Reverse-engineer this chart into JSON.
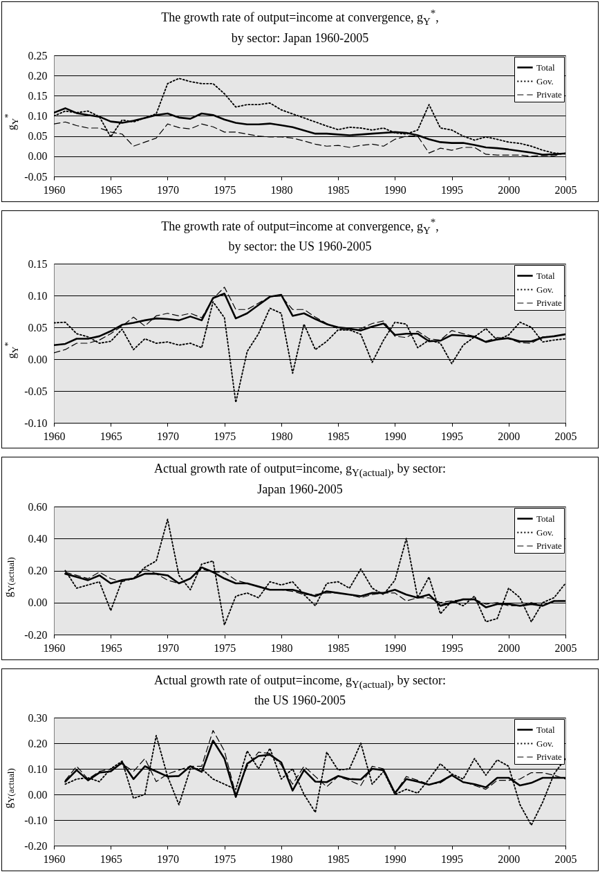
{
  "chart_data": [
    {
      "type": "line",
      "title": "The growth rate of output=income at convergence, g$_{Y}$$^{*}$,",
      "subtitle": "by sector: Japan 1960-2005",
      "ylabel": "g$_{Y}$$^{*}$",
      "x": [
        1960,
        1961,
        1962,
        1963,
        1964,
        1965,
        1966,
        1967,
        1968,
        1969,
        1970,
        1971,
        1972,
        1973,
        1974,
        1975,
        1976,
        1977,
        1978,
        1979,
        1980,
        1981,
        1982,
        1983,
        1984,
        1985,
        1986,
        1987,
        1988,
        1989,
        1990,
        1991,
        1992,
        1993,
        1994,
        1995,
        1996,
        1997,
        1998,
        1999,
        2000,
        2001,
        2002,
        2003,
        2004,
        2005
      ],
      "xlim": [
        1960,
        2005
      ],
      "xticks": [
        1960,
        1965,
        1970,
        1975,
        1980,
        1985,
        1990,
        1995,
        2000,
        2005
      ],
      "ylim": [
        -0.05,
        0.25
      ],
      "yticks": [
        {
          "value": -0.05,
          "label": "-0.05"
        },
        {
          "value": 0,
          "label": "0.00"
        },
        {
          "value": 0.05,
          "label": "0.05"
        },
        {
          "value": 0.1,
          "label": "0.10"
        },
        {
          "value": 0.15,
          "label": "0.15"
        },
        {
          "value": 0.2,
          "label": "0.20"
        },
        {
          "value": 0.25,
          "label": "0.25"
        }
      ],
      "grid": "y",
      "legend": "top right",
      "series": [
        {
          "name": "Total",
          "color": "#000000",
          "line_style": "solid",
          "values": [
            0.108,
            0.119,
            0.107,
            0.102,
            0.098,
            0.086,
            0.083,
            0.088,
            0.095,
            0.102,
            0.106,
            0.096,
            0.093,
            0.106,
            0.102,
            0.091,
            0.083,
            0.079,
            0.079,
            0.081,
            0.077,
            0.072,
            0.064,
            0.056,
            0.056,
            0.054,
            0.052,
            0.054,
            0.056,
            0.058,
            0.06,
            0.058,
            0.052,
            0.042,
            0.035,
            0.033,
            0.033,
            0.028,
            0.022,
            0.02,
            0.017,
            0.013,
            0.009,
            0.004,
            0.005,
            0.007
          ]
        },
        {
          "name": "Gov.",
          "color": "#000000",
          "line_style": "dotted",
          "values": [
            0.1,
            0.112,
            0.108,
            0.112,
            0.098,
            0.048,
            0.09,
            0.085,
            0.095,
            0.105,
            0.18,
            0.193,
            0.185,
            0.18,
            0.18,
            0.155,
            0.122,
            0.128,
            0.128,
            0.132,
            0.115,
            0.105,
            0.095,
            0.085,
            0.075,
            0.066,
            0.072,
            0.07,
            0.065,
            0.07,
            0.058,
            0.055,
            0.065,
            0.128,
            0.07,
            0.065,
            0.05,
            0.04,
            0.048,
            0.042,
            0.035,
            0.032,
            0.025,
            0.015,
            0.008,
            0.006
          ]
        },
        {
          "name": "Private",
          "color": "#000000",
          "line_style": "dashed",
          "values": [
            0.08,
            0.085,
            0.076,
            0.07,
            0.07,
            0.06,
            0.055,
            0.025,
            0.035,
            0.045,
            0.08,
            0.071,
            0.068,
            0.08,
            0.073,
            0.06,
            0.06,
            0.055,
            0.05,
            0.048,
            0.048,
            0.045,
            0.038,
            0.03,
            0.025,
            0.027,
            0.022,
            0.027,
            0.03,
            0.025,
            0.042,
            0.05,
            0.05,
            0.008,
            0.02,
            0.015,
            0.022,
            0.022,
            0.005,
            0.003,
            0.003,
            0.003,
            0.0,
            0.002,
            0.001,
            0.008
          ]
        }
      ]
    },
    {
      "type": "line",
      "title": "The growth rate of output=income at convergence, g$_{Y}$$^{*}$,",
      "subtitle": "by sector: the US 1960-2005",
      "ylabel": "g$_{Y}$$^{*}$",
      "x": [
        1960,
        1961,
        1962,
        1963,
        1964,
        1965,
        1966,
        1967,
        1968,
        1969,
        1970,
        1971,
        1972,
        1973,
        1974,
        1975,
        1976,
        1977,
        1978,
        1979,
        1980,
        1981,
        1982,
        1983,
        1984,
        1985,
        1986,
        1987,
        1988,
        1989,
        1990,
        1991,
        1992,
        1993,
        1994,
        1995,
        1996,
        1997,
        1998,
        1999,
        2000,
        2001,
        2002,
        2003,
        2004,
        2005
      ],
      "xlim": [
        1960,
        2005
      ],
      "xticks": [
        1960,
        1965,
        1970,
        1975,
        1980,
        1985,
        1990,
        1995,
        2000,
        2005
      ],
      "ylim": [
        -0.1,
        0.15
      ],
      "yticks": [
        {
          "value": -0.1,
          "label": "-0.10"
        },
        {
          "value": -0.05,
          "label": "-0.05"
        },
        {
          "value": 0,
          "label": "0.00"
        },
        {
          "value": 0.05,
          "label": "0.05"
        },
        {
          "value": 0.1,
          "label": "0.10"
        },
        {
          "value": 0.15,
          "label": "0.15"
        }
      ],
      "grid": "y",
      "legend": "top right",
      "series": [
        {
          "name": "Total",
          "color": "#000000",
          "line_style": "solid",
          "values": [
            0.022,
            0.024,
            0.032,
            0.032,
            0.036,
            0.044,
            0.054,
            0.057,
            0.061,
            0.064,
            0.063,
            0.061,
            0.067,
            0.061,
            0.096,
            0.103,
            0.064,
            0.072,
            0.085,
            0.098,
            0.101,
            0.068,
            0.072,
            0.063,
            0.055,
            0.05,
            0.048,
            0.045,
            0.051,
            0.056,
            0.038,
            0.04,
            0.04,
            0.028,
            0.029,
            0.038,
            0.037,
            0.035,
            0.027,
            0.031,
            0.033,
            0.028,
            0.028,
            0.034,
            0.036,
            0.039
          ]
        },
        {
          "name": "Gov.",
          "color": "#000000",
          "line_style": "dotted",
          "values": [
            0.057,
            0.058,
            0.04,
            0.035,
            0.025,
            0.028,
            0.047,
            0.015,
            0.032,
            0.025,
            0.027,
            0.022,
            0.025,
            0.018,
            0.09,
            0.065,
            -0.068,
            0.012,
            0.04,
            0.08,
            0.072,
            -0.022,
            0.055,
            0.015,
            0.028,
            0.046,
            0.046,
            0.039,
            -0.005,
            0.03,
            0.058,
            0.055,
            0.018,
            0.03,
            0.025,
            -0.007,
            0.022,
            0.035,
            0.048,
            0.03,
            0.038,
            0.058,
            0.05,
            0.027,
            0.03,
            0.032
          ]
        },
        {
          "name": "Private",
          "color": "#000000",
          "line_style": "dashed",
          "values": [
            0.01,
            0.015,
            0.025,
            0.025,
            0.03,
            0.04,
            0.052,
            0.066,
            0.052,
            0.068,
            0.072,
            0.068,
            0.072,
            0.065,
            0.095,
            0.113,
            0.078,
            0.078,
            0.088,
            0.098,
            0.099,
            0.078,
            0.078,
            0.066,
            0.056,
            0.048,
            0.045,
            0.048,
            0.056,
            0.06,
            0.036,
            0.034,
            0.044,
            0.032,
            0.03,
            0.045,
            0.04,
            0.036,
            0.028,
            0.034,
            0.032,
            0.026,
            0.025,
            0.035,
            0.036,
            0.039
          ]
        }
      ]
    },
    {
      "type": "line",
      "title": "Actual growth rate of output=income, g$_{Y(actual)}$, by sector:",
      "subtitle": "Japan 1960-2005",
      "ylabel": "g$_{Y(actual)}$",
      "x": [
        1961,
        1962,
        1963,
        1964,
        1965,
        1966,
        1967,
        1968,
        1969,
        1970,
        1971,
        1972,
        1973,
        1974,
        1975,
        1976,
        1977,
        1978,
        1979,
        1980,
        1981,
        1982,
        1983,
        1984,
        1985,
        1986,
        1987,
        1988,
        1989,
        1990,
        1991,
        1992,
        1993,
        1994,
        1995,
        1996,
        1997,
        1998,
        1999,
        2000,
        2001,
        2002,
        2003,
        2004,
        2005
      ],
      "xlim": [
        1960,
        2005
      ],
      "xticks": [
        1960,
        1965,
        1970,
        1975,
        1980,
        1985,
        1990,
        1995,
        2000,
        2005
      ],
      "ylim": [
        -0.2,
        0.6
      ],
      "yticks": [
        {
          "value": -0.2,
          "label": "-0.20"
        },
        {
          "value": 0,
          "label": "0.00"
        },
        {
          "value": 0.2,
          "label": "0.20"
        },
        {
          "value": 0.4,
          "label": "0.40"
        },
        {
          "value": 0.6,
          "label": "0.60"
        }
      ],
      "grid": "y",
      "legend": "top right",
      "series": [
        {
          "name": "Total",
          "color": "#000000",
          "line_style": "solid",
          "values": [
            0.18,
            0.16,
            0.14,
            0.17,
            0.12,
            0.14,
            0.15,
            0.18,
            0.18,
            0.17,
            0.12,
            0.15,
            0.22,
            0.19,
            0.15,
            0.12,
            0.12,
            0.1,
            0.08,
            0.08,
            0.08,
            0.06,
            0.04,
            0.07,
            0.06,
            0.05,
            0.04,
            0.06,
            0.06,
            0.08,
            0.05,
            0.03,
            0.05,
            -0.02,
            0.0,
            0.02,
            0.02,
            -0.03,
            -0.01,
            -0.01,
            -0.02,
            -0.01,
            -0.02,
            0.01,
            0.01
          ]
        },
        {
          "name": "Gov.",
          "color": "#000000",
          "line_style": "dotted",
          "values": [
            0.2,
            0.09,
            0.11,
            0.13,
            -0.05,
            0.14,
            0.15,
            0.22,
            0.26,
            0.52,
            0.17,
            0.08,
            0.24,
            0.26,
            -0.14,
            0.04,
            0.06,
            0.03,
            0.13,
            0.11,
            0.13,
            0.05,
            -0.02,
            0.12,
            0.13,
            0.09,
            0.21,
            0.09,
            0.05,
            0.14,
            0.4,
            0.03,
            0.16,
            -0.07,
            0.01,
            -0.02,
            0.04,
            -0.12,
            -0.1,
            0.09,
            0.03,
            -0.12,
            0.0,
            0.03,
            0.12
          ]
        },
        {
          "name": "Private",
          "color": "#000000",
          "line_style": "dashed",
          "values": [
            0.19,
            0.17,
            0.15,
            0.19,
            0.15,
            0.13,
            0.15,
            0.21,
            0.18,
            0.14,
            0.12,
            0.15,
            0.21,
            0.19,
            0.19,
            0.14,
            0.12,
            0.1,
            0.08,
            0.08,
            0.07,
            0.05,
            0.05,
            0.06,
            0.06,
            0.05,
            0.03,
            0.05,
            0.06,
            0.06,
            0.01,
            0.03,
            0.03,
            0.0,
            0.01,
            0.02,
            0.02,
            -0.01,
            0.0,
            -0.02,
            -0.02,
            0.0,
            -0.02,
            0.01,
            0.01
          ]
        }
      ]
    },
    {
      "type": "line",
      "title": "Actual growth rate of output=income, g$_{Y(actual)}$, by sector:",
      "subtitle": "the US 1960-2005",
      "ylabel": "g$_{Y(actual)}$",
      "x": [
        1961,
        1962,
        1963,
        1964,
        1965,
        1966,
        1967,
        1968,
        1969,
        1970,
        1971,
        1972,
        1973,
        1974,
        1975,
        1976,
        1977,
        1978,
        1979,
        1980,
        1981,
        1982,
        1983,
        1984,
        1985,
        1986,
        1987,
        1988,
        1989,
        1990,
        1991,
        1992,
        1993,
        1994,
        1995,
        1996,
        1997,
        1998,
        1999,
        2000,
        2001,
        2002,
        2003,
        2004,
        2005
      ],
      "xlim": [
        1960,
        2005
      ],
      "xticks": [
        1960,
        1965,
        1970,
        1975,
        1980,
        1985,
        1990,
        1995,
        2000,
        2005
      ],
      "ylim": [
        -0.2,
        0.3
      ],
      "yticks": [
        {
          "value": -0.2,
          "label": "-0.20"
        },
        {
          "value": -0.1,
          "label": "-0.10"
        },
        {
          "value": 0,
          "label": "0.00"
        },
        {
          "value": 0.1,
          "label": "0.10"
        },
        {
          "value": 0.2,
          "label": "0.20"
        },
        {
          "value": 0.3,
          "label": "0.30"
        }
      ],
      "grid": "y",
      "legend": "top right",
      "series": [
        {
          "name": "Total",
          "color": "#000000",
          "line_style": "solid",
          "values": [
            0.05,
            0.095,
            0.055,
            0.085,
            0.09,
            0.125,
            0.06,
            0.11,
            0.09,
            0.07,
            0.072,
            0.11,
            0.088,
            0.21,
            0.14,
            -0.01,
            0.12,
            0.15,
            0.155,
            0.125,
            0.015,
            0.095,
            0.05,
            0.048,
            0.072,
            0.06,
            0.058,
            0.1,
            0.095,
            0.005,
            0.06,
            0.05,
            0.038,
            0.05,
            0.075,
            0.048,
            0.04,
            0.028,
            0.065,
            0.065,
            0.035,
            0.045,
            0.065,
            0.065,
            0.065
          ]
        },
        {
          "name": "Gov.",
          "color": "#000000",
          "line_style": "dotted",
          "values": [
            0.04,
            0.06,
            0.065,
            0.05,
            0.1,
            0.13,
            -0.015,
            0.0,
            0.23,
            0.07,
            -0.04,
            0.1,
            0.1,
            0.06,
            0.04,
            0.02,
            0.17,
            0.1,
            0.18,
            0.06,
            0.1,
            0.0,
            -0.07,
            0.165,
            0.095,
            0.1,
            0.2,
            0.04,
            0.09,
            0.0,
            0.02,
            0.005,
            0.06,
            0.12,
            0.08,
            0.06,
            0.14,
            0.075,
            0.135,
            0.11,
            -0.04,
            -0.12,
            -0.03,
            0.08,
            0.14
          ]
        },
        {
          "name": "Private",
          "color": "#000000",
          "line_style": "dashed",
          "values": [
            0.055,
            0.11,
            0.06,
            0.09,
            0.1,
            0.12,
            0.09,
            0.14,
            0.05,
            0.08,
            0.095,
            0.11,
            0.11,
            0.25,
            0.17,
            0.0,
            0.11,
            0.165,
            0.16,
            0.115,
            0.04,
            0.11,
            0.07,
            0.03,
            0.07,
            0.055,
            0.035,
            0.11,
            0.1,
            0.005,
            0.07,
            0.055,
            0.04,
            0.045,
            0.075,
            0.05,
            0.035,
            0.02,
            0.055,
            0.055,
            0.06,
            0.085,
            0.085,
            0.075,
            0.06
          ]
        }
      ]
    }
  ]
}
